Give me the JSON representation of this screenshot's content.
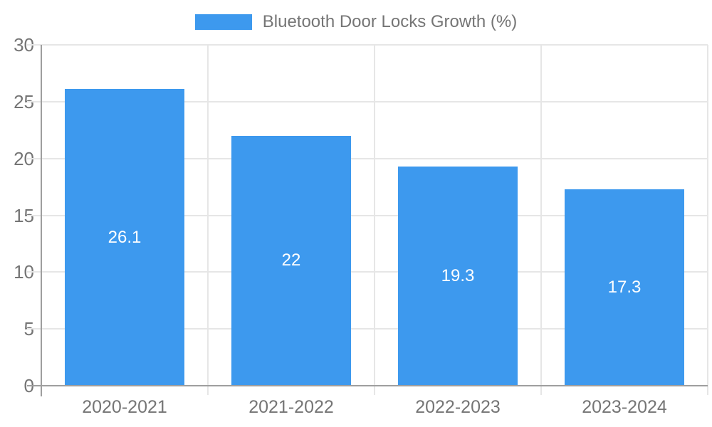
{
  "chart_data": {
    "type": "bar",
    "title": "Bluetooth Door Locks Growth (%)",
    "categories": [
      "2020-2021",
      "2021-2022",
      "2022-2023",
      "2023-2024"
    ],
    "values": [
      26.1,
      22,
      19.3,
      17.3
    ],
    "value_labels": [
      "26.1",
      "22",
      "19.3",
      "17.3"
    ],
    "xlabel": "",
    "ylabel": "",
    "ylim": [
      0,
      30
    ],
    "yticks": [
      0,
      5,
      10,
      15,
      20,
      25,
      30
    ],
    "grid": true,
    "legend_position": "top-center",
    "colors": {
      "bar": "#3D99EE",
      "axis_line": "#9E9E9E",
      "gridline": "#E6E6E6",
      "axis_text": "#757575",
      "value_label_text": "#FFFFFF",
      "background": "#FFFFFF"
    }
  },
  "legend": {
    "label": "Bluetooth Door Locks Growth (%)"
  }
}
